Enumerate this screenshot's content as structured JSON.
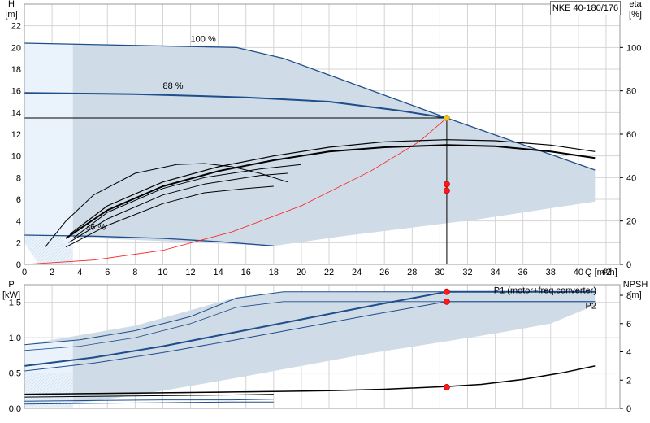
{
  "model": "NKE 40-180/176",
  "chart_data": [
    {
      "type": "line",
      "name": "head",
      "x_label": "Q [m³/h]",
      "y_label_lines": [
        "H",
        "[m]"
      ],
      "y2_label_lines": [
        "eta",
        "[%]"
      ],
      "xlim": [
        0,
        43
      ],
      "ylim": [
        0,
        24
      ],
      "y2lim": [
        0,
        120
      ],
      "x_ticks": [
        0,
        2,
        4,
        6,
        8,
        10,
        12,
        14,
        16,
        18,
        20,
        22,
        24,
        26,
        28,
        30,
        32,
        34,
        36,
        38,
        40,
        42
      ],
      "y_ticks": [
        0,
        2,
        4,
        6,
        8,
        10,
        12,
        14,
        16,
        18,
        20,
        22
      ],
      "y2_ticks": [
        0,
        20,
        40,
        60,
        80,
        100
      ],
      "speed_labels": [
        {
          "text": "100 %",
          "x": 12,
          "y": 20.5
        },
        {
          "text": "88 %",
          "x": 10,
          "y": 16.2
        },
        {
          "text": "36 %",
          "x": 4.4,
          "y": 3.2
        }
      ],
      "operating_region": [
        [
          0,
          20.4
        ],
        [
          15.3,
          20.0
        ],
        [
          18.7,
          19.0
        ],
        [
          30.5,
          13.5
        ],
        [
          41.2,
          8.7
        ],
        [
          41.2,
          5.8
        ],
        [
          33,
          4.2
        ],
        [
          28,
          3.4
        ],
        [
          23,
          2.6
        ],
        [
          18,
          1.7
        ],
        [
          0,
          2.7
        ]
      ],
      "left_region": [
        [
          0,
          20.4
        ],
        [
          3.5,
          20.3
        ],
        [
          3.5,
          0
        ],
        [
          1.0,
          0
        ],
        [
          0,
          2.0
        ]
      ],
      "left_hatch_region": [
        [
          0,
          2.0
        ],
        [
          1.2,
          0
        ],
        [
          3.5,
          0
        ],
        [
          3.5,
          1.2
        ],
        [
          2.4,
          2.7
        ],
        [
          0,
          2.7
        ]
      ],
      "series": [
        {
          "role": "max_speed",
          "color": "#1f4e8c",
          "width": 1.3,
          "points": [
            [
              0,
              20.4
            ],
            [
              15.3,
              20.0
            ],
            [
              18.7,
              19.0
            ],
            [
              30.5,
              13.5
            ],
            [
              41.2,
              8.7
            ]
          ]
        },
        {
          "role": "speed_88",
          "color": "#1f4e8c",
          "width": 2.0,
          "points": [
            [
              0,
              15.8
            ],
            [
              8,
              15.7
            ],
            [
              16,
              15.4
            ],
            [
              22,
              15.0
            ],
            [
              27,
              14.2
            ],
            [
              30.5,
              13.5
            ]
          ]
        },
        {
          "role": "min_speed",
          "color": "#1f4e8c",
          "width": 1.3,
          "points": [
            [
              0,
              2.7
            ],
            [
              5,
              2.6
            ],
            [
              10,
              2.4
            ],
            [
              14,
              2.1
            ],
            [
              18,
              1.7
            ]
          ]
        },
        {
          "role": "system_curve",
          "color": "#ff1a1a",
          "width": 0.8,
          "points": [
            [
              0,
              0
            ],
            [
              5,
              0.4
            ],
            [
              10,
              1.3
            ],
            [
              15,
              3.0
            ],
            [
              20,
              5.4
            ],
            [
              25,
              8.6
            ],
            [
              28.5,
              11.3
            ],
            [
              30.5,
              13.5
            ]
          ]
        },
        {
          "role": "duty_line",
          "color": "#000000",
          "width": 1.0,
          "points": [
            [
              0,
              13.5
            ],
            [
              30.5,
              13.5
            ]
          ]
        },
        {
          "role": "eta_100",
          "axis": "y2",
          "color": "#000000",
          "width": 2.0,
          "points": [
            [
              3,
              12
            ],
            [
              6,
              25
            ],
            [
              10,
              36
            ],
            [
              14,
              43
            ],
            [
              18,
              48
            ],
            [
              22,
              52
            ],
            [
              26,
              54
            ],
            [
              30.5,
              55
            ],
            [
              34,
              54.5
            ],
            [
              38,
              52
            ],
            [
              41.2,
              49
            ]
          ]
        },
        {
          "role": "eta_88",
          "axis": "y2",
          "color": "#000000",
          "width": 1.2,
          "points": [
            [
              3.3,
              14
            ],
            [
              6,
              27
            ],
            [
              10,
              38
            ],
            [
              14,
              45
            ],
            [
              18,
              50
            ],
            [
              22,
              54
            ],
            [
              26,
              56.5
            ],
            [
              30.5,
              57.5
            ],
            [
              34,
              57
            ],
            [
              38,
              55
            ],
            [
              41.2,
              52
            ]
          ]
        },
        {
          "role": "eta_mid_1",
          "axis": "y2",
          "color": "#000000",
          "width": 1.0,
          "points": [
            [
              3.5,
              12
            ],
            [
              6,
              24
            ],
            [
              10,
              35
            ],
            [
              13,
              40
            ],
            [
              17,
              44
            ],
            [
              20,
              46
            ]
          ]
        },
        {
          "role": "eta_mid_2",
          "axis": "y2",
          "color": "#000000",
          "width": 1.0,
          "points": [
            [
              3.2,
              10
            ],
            [
              6,
              21
            ],
            [
              10,
              32
            ],
            [
              13,
              37
            ],
            [
              17,
              41
            ],
            [
              19,
              42
            ]
          ]
        },
        {
          "role": "eta_mid_3",
          "axis": "y2",
          "color": "#000000",
          "width": 1.0,
          "points": [
            [
              3.0,
              8
            ],
            [
              6,
              18
            ],
            [
              10,
              28
            ],
            [
              13,
              33
            ],
            [
              16,
              35
            ],
            [
              18,
              36
            ]
          ]
        },
        {
          "role": "eta_min",
          "axis": "y2",
          "color": "#000000",
          "width": 1.0,
          "points": [
            [
              1.5,
              8
            ],
            [
              3,
              20
            ],
            [
              5,
              32
            ],
            [
              8,
              42
            ],
            [
              11,
              46
            ],
            [
              13,
              46.5
            ],
            [
              15,
              45
            ],
            [
              17,
              42
            ],
            [
              19,
              38
            ]
          ]
        }
      ],
      "markers": [
        {
          "x": 30.5,
          "y": 13.5,
          "color": "#f5c518",
          "stroke": "#c08000"
        },
        {
          "x": 30.5,
          "y": 7.4,
          "color": "#ff1a1a",
          "stroke": "#cc0000"
        },
        {
          "x": 30.5,
          "y": 6.8,
          "color": "#ff1a1a",
          "stroke": "#cc0000"
        }
      ],
      "vertical_line_x": 30.5
    },
    {
      "type": "line",
      "name": "power_npsh",
      "y_label_lines": [
        "P",
        "[kW]"
      ],
      "y2_label_lines": [
        "NPSH",
        "[m]"
      ],
      "xlim": [
        0,
        43
      ],
      "ylim": [
        0,
        1.75
      ],
      "y2lim": [
        0,
        8.75
      ],
      "y_ticks": [
        0.0,
        0.5,
        1.0,
        1.5
      ],
      "y2_ticks": [
        0,
        2,
        4,
        6,
        8
      ],
      "legend": [
        {
          "text": "P1 (motor+freq.converter)",
          "color": "#1f4e8c",
          "x": 41.3,
          "y": 1.63
        },
        {
          "text": "P2",
          "color": "#1f4e8c",
          "x": 41.3,
          "y": 1.41
        }
      ],
      "operating_region": [
        [
          0,
          0.9
        ],
        [
          8,
          1.17
        ],
        [
          15.3,
          1.57
        ],
        [
          18.7,
          1.65
        ],
        [
          30.5,
          1.65
        ],
        [
          41.2,
          1.65
        ],
        [
          41.2,
          1.46
        ],
        [
          38,
          1.2
        ],
        [
          34,
          1.06
        ],
        [
          30.5,
          0.95
        ],
        [
          25,
          0.78
        ],
        [
          20,
          0.6
        ],
        [
          15,
          0.42
        ],
        [
          10,
          0.25
        ],
        [
          5,
          0.1
        ],
        [
          1.5,
          0.04
        ],
        [
          0,
          0.03
        ]
      ],
      "left_region": [
        [
          0,
          0.9
        ],
        [
          3.5,
          0.95
        ],
        [
          3.5,
          0
        ],
        [
          0,
          0
        ]
      ],
      "left_hatch_region": [
        [
          0,
          0.02
        ],
        [
          3.5,
          0.02
        ],
        [
          3.5,
          0.5
        ],
        [
          0,
          0.5
        ]
      ],
      "series": [
        {
          "role": "p1_max",
          "color": "#1f4e8c",
          "width": 1.0,
          "points": [
            [
              0,
              0.9
            ],
            [
              4,
              0.97
            ],
            [
              8,
              1.1
            ],
            [
              12,
              1.3
            ],
            [
              15.3,
              1.56
            ],
            [
              18.7,
              1.65
            ],
            [
              30.5,
              1.65
            ],
            [
              41.2,
              1.65
            ]
          ]
        },
        {
          "role": "p2_max",
          "color": "#1f4e8c",
          "width": 0.8,
          "points": [
            [
              0,
              0.82
            ],
            [
              4,
              0.88
            ],
            [
              8,
              1.0
            ],
            [
              12,
              1.2
            ],
            [
              15.3,
              1.43
            ],
            [
              18.7,
              1.51
            ],
            [
              30.5,
              1.51
            ],
            [
              41.2,
              1.51
            ]
          ]
        },
        {
          "role": "p1_op",
          "color": "#1f4e8c",
          "width": 2.0,
          "points": [
            [
              0,
              0.6
            ],
            [
              5,
              0.72
            ],
            [
              10,
              0.88
            ],
            [
              15,
              1.07
            ],
            [
              20,
              1.26
            ],
            [
              25,
              1.45
            ],
            [
              30.5,
              1.65
            ],
            [
              41.2,
              1.65
            ]
          ]
        },
        {
          "role": "p2_op",
          "color": "#1f4e8c",
          "width": 1.0,
          "points": [
            [
              0,
              0.53
            ],
            [
              5,
              0.64
            ],
            [
              10,
              0.79
            ],
            [
              15,
              0.96
            ],
            [
              20,
              1.14
            ],
            [
              25,
              1.32
            ],
            [
              30.5,
              1.51
            ],
            [
              41.2,
              1.51
            ]
          ]
        },
        {
          "role": "npsh",
          "axis": "y2",
          "color": "#000000",
          "width": 1.5,
          "points": [
            [
              0,
              1.0
            ],
            [
              10,
              1.1
            ],
            [
              18,
              1.2
            ],
            [
              22,
              1.25
            ],
            [
              26,
              1.35
            ],
            [
              30.5,
              1.55
            ],
            [
              33,
              1.7
            ],
            [
              36,
              2.05
            ],
            [
              39,
              2.55
            ],
            [
              41.2,
              3.0
            ]
          ]
        },
        {
          "role": "p_min_1",
          "color": "#000000",
          "width": 1.0,
          "points": [
            [
              0,
              0.2
            ],
            [
              5,
              0.21
            ],
            [
              10,
              0.22
            ],
            [
              15,
              0.23
            ],
            [
              18,
              0.24
            ]
          ]
        },
        {
          "role": "p_min_2",
          "color": "#000000",
          "width": 1.0,
          "points": [
            [
              0,
              0.16
            ],
            [
              5,
              0.17
            ],
            [
              10,
              0.18
            ],
            [
              15,
              0.19
            ],
            [
              18,
              0.2
            ]
          ]
        },
        {
          "role": "p_min_3",
          "color": "#1f4e8c",
          "width": 1.0,
          "points": [
            [
              0,
              0.1
            ],
            [
              5,
              0.11
            ],
            [
              10,
              0.12
            ],
            [
              15,
              0.12
            ],
            [
              18,
              0.13
            ]
          ]
        },
        {
          "role": "p_min_4",
          "color": "#1f4e8c",
          "width": 1.0,
          "points": [
            [
              0,
              0.06
            ],
            [
              5,
              0.07
            ],
            [
              10,
              0.08
            ],
            [
              15,
              0.09
            ],
            [
              18,
              0.09
            ]
          ]
        }
      ],
      "markers": [
        {
          "x": 30.5,
          "y": 1.65,
          "color": "#ff1a1a",
          "stroke": "#cc0000"
        },
        {
          "x": 30.5,
          "y": 1.51,
          "color": "#ff1a1a",
          "stroke": "#cc0000"
        },
        {
          "x": 30.5,
          "y": 0.3,
          "color": "#ff1a1a",
          "stroke": "#cc0000"
        }
      ]
    }
  ]
}
